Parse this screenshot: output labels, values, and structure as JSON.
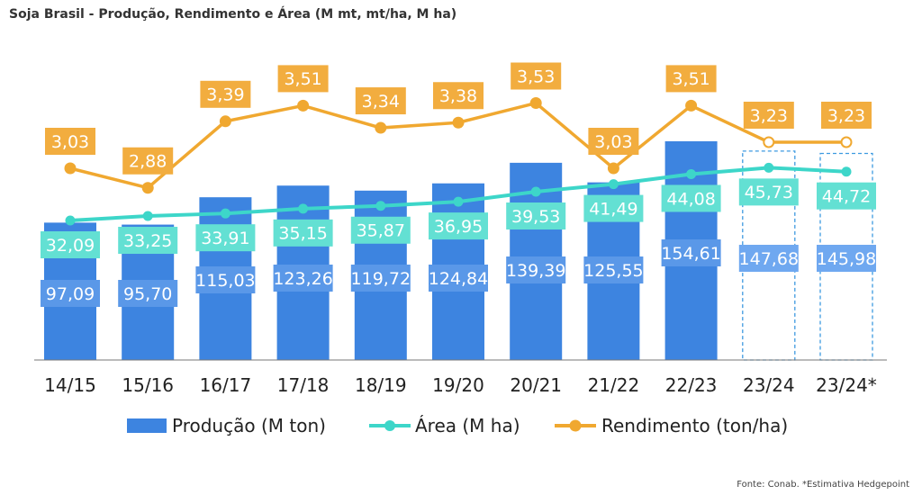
{
  "chart_data": {
    "type": "bar",
    "title": "Soja Brasil - Produção, Rendimento e Área (M mt, mt/ha, M ha)",
    "categories": [
      "14/15",
      "15/16",
      "16/17",
      "17/18",
      "18/19",
      "19/20",
      "20/21",
      "21/22",
      "22/23",
      "23/24",
      "23/24*"
    ],
    "series": [
      {
        "name": "Produção (M ton)",
        "type": "bar",
        "values": [
          97.09,
          95.7,
          115.03,
          123.26,
          119.72,
          124.84,
          139.39,
          125.55,
          154.61,
          147.68,
          145.98
        ],
        "labels": [
          "97,09",
          "95,70",
          "115,03",
          "123,26",
          "119,72",
          "124,84",
          "139,39",
          "125,55",
          "154,61",
          "147,68",
          "145,98"
        ],
        "color": "#3d84e0"
      },
      {
        "name": "Área (M ha)",
        "type": "line",
        "values": [
          32.09,
          33.25,
          33.91,
          35.15,
          35.87,
          36.95,
          39.53,
          41.49,
          44.08,
          45.73,
          44.72
        ],
        "labels": [
          "32,09",
          "33,25",
          "33,91",
          "35,15",
          "35,87",
          "36,95",
          "39,53",
          "41,49",
          "44,08",
          "45,73",
          "44,72"
        ],
        "color": "#3dd6c9"
      },
      {
        "name": "Rendimento (ton/ha)",
        "type": "line",
        "values": [
          3.03,
          2.88,
          3.39,
          3.51,
          3.34,
          3.38,
          3.53,
          3.03,
          3.51,
          3.23,
          3.23
        ],
        "labels": [
          "3,03",
          "2,88",
          "3,39",
          "3,51",
          "3,34",
          "3,38",
          "3,53",
          "3,03",
          "3,51",
          "3,23",
          "3,23"
        ],
        "color": "#f0a830"
      }
    ],
    "estimate_categories": [
      "23/24",
      "23/24*"
    ],
    "source": "Fonte: Conab. *Estimativa Hedgepoint",
    "legend_position": "bottom",
    "grid": false
  }
}
